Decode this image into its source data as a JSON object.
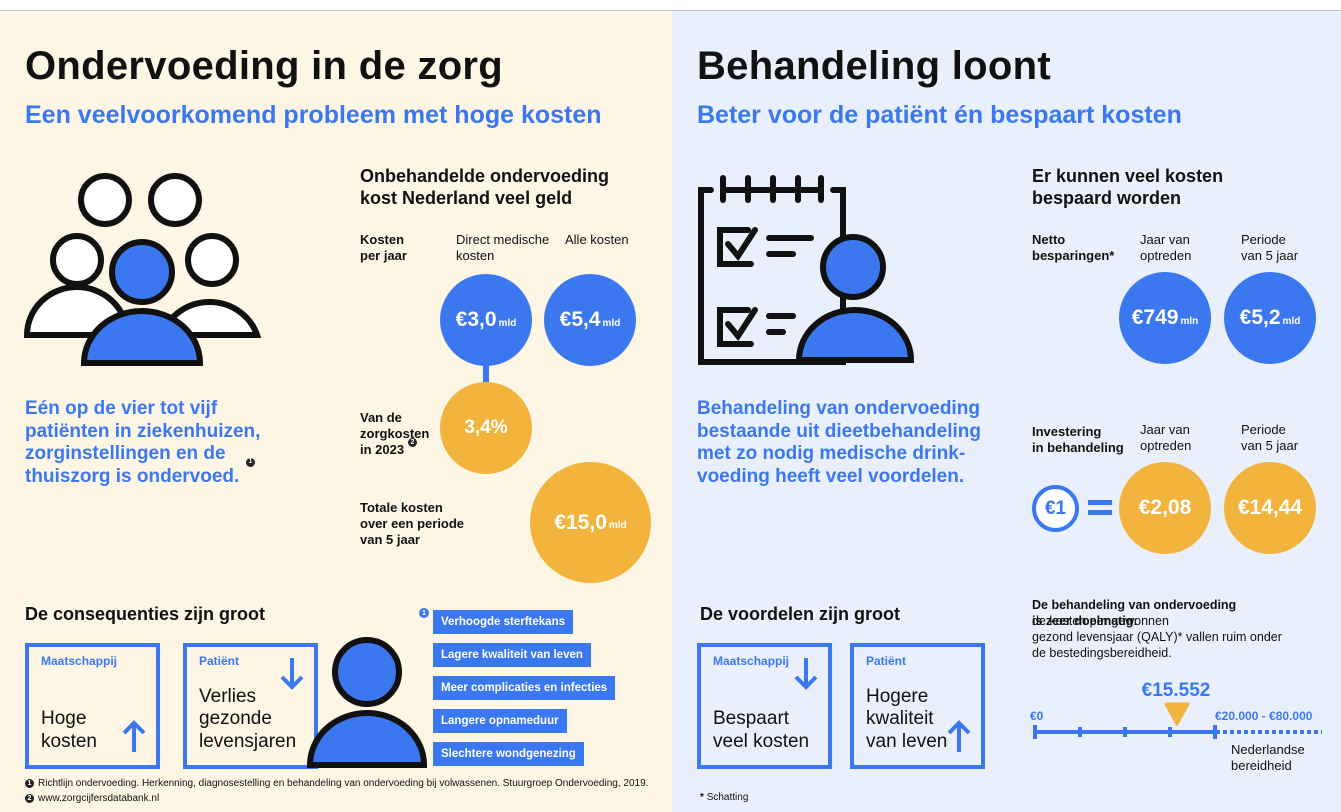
{
  "left": {
    "title": "Ondervoeding in de zorg",
    "subtitle": "Een veelvoorkomend probleem met hoge kosten",
    "statement": {
      "lines": [
        "Eén op de vier tot vijf",
        "patiënten in ziekenhuizen,",
        "zorginstellingen en de",
        "thuiszorg is ondervoed."
      ],
      "note": "1"
    },
    "costs": {
      "heading": [
        "Onbehandelde ondervoeding",
        "kost Nederland veel geld"
      ],
      "row_label": [
        "Kosten",
        "per jaar"
      ],
      "columns": [
        [
          "Direct medische",
          "kosten"
        ],
        [
          "Alle kosten"
        ]
      ],
      "annual": [
        {
          "value": "€3,0",
          "unit": "mld"
        },
        {
          "value": "€5,4",
          "unit": "mld"
        }
      ],
      "share": {
        "label": [
          "Van de",
          "zorgkosten",
          "in 2023"
        ],
        "note": "2",
        "value": "3,4%"
      },
      "total": {
        "label": [
          "Totale kosten",
          "over een periode",
          "van 5 jaar"
        ],
        "value": "€15,0",
        "unit": "mld"
      }
    },
    "consequences": {
      "heading": "De consequenties zijn groot",
      "boxes": [
        {
          "label": "Maatschappij",
          "text": [
            "Hoge",
            "kosten"
          ]
        },
        {
          "label": "Patiënt",
          "text": [
            "Verlies",
            "gezonde",
            "levensjaren"
          ]
        }
      ],
      "note": "1",
      "effects": [
        "Verhoogde sterftekans",
        "Lagere kwaliteit van leven",
        "Meer complicaties en infecties",
        "Langere opnameduur",
        "Slechtere wondgenezing"
      ]
    },
    "footnotes": [
      {
        "marker": "1",
        "text": "Richtlijn ondervoeding. Herkenning, diagnosestelling en behandeling van ondervoeding bij volwassenen. Stuurgroep Ondervoeding, 2019."
      },
      {
        "marker": "2",
        "text": "www.zorgcijfersdatabank.nl"
      }
    ]
  },
  "right": {
    "title": "Behandeling loont",
    "subtitle": "Beter voor de patiënt én bespaart kosten",
    "statement": {
      "lines": [
        "Behandeling van ondervoeding",
        "bestaande uit dieetbehandeling",
        "met zo nodig medische drink-",
        "voeding heeft veel voordelen."
      ]
    },
    "savings": {
      "heading": [
        "Er kunnen veel kosten",
        "bespaard worden"
      ],
      "row_label": [
        "Netto",
        "besparingen*"
      ],
      "columns": [
        [
          "Jaar van",
          "optreden"
        ],
        [
          "Periode",
          "van 5 jaar"
        ]
      ],
      "values": [
        {
          "value": "€749",
          "unit": "mln"
        },
        {
          "value": "€5,2",
          "unit": "mld"
        }
      ]
    },
    "investment": {
      "row_label": [
        "Investering",
        "in behandeling"
      ],
      "columns": [
        [
          "Jaar van",
          "optreden"
        ],
        [
          "Periode",
          "van 5 jaar"
        ]
      ],
      "input": "€1",
      "returns": [
        "€2,08",
        "€14,44"
      ]
    },
    "benefits": {
      "heading": "De voordelen zijn groot",
      "boxes": [
        {
          "label": "Maatschappij",
          "text": [
            "Bespaart",
            "veel kosten"
          ]
        },
        {
          "label": "Patiënt",
          "text": [
            "Hogere",
            "kwaliteit",
            "van leven"
          ]
        }
      ]
    },
    "efficiency": {
      "lead": [
        "De behandeling van ondervoeding",
        "is zeer doelmatig:"
      ],
      "text": [
        "de kosten per gewonnen",
        "gezond levensjaar (QALY)* vallen ruim onder",
        "de bestedingsbereidheid."
      ],
      "value": "€15.552",
      "scale_min": "€0",
      "scale_range": "€20.000 - €80.000",
      "range_label": [
        "Nederlandse",
        "bereidheid"
      ]
    },
    "footnote": {
      "marker": "*",
      "text": "Schatting"
    }
  }
}
